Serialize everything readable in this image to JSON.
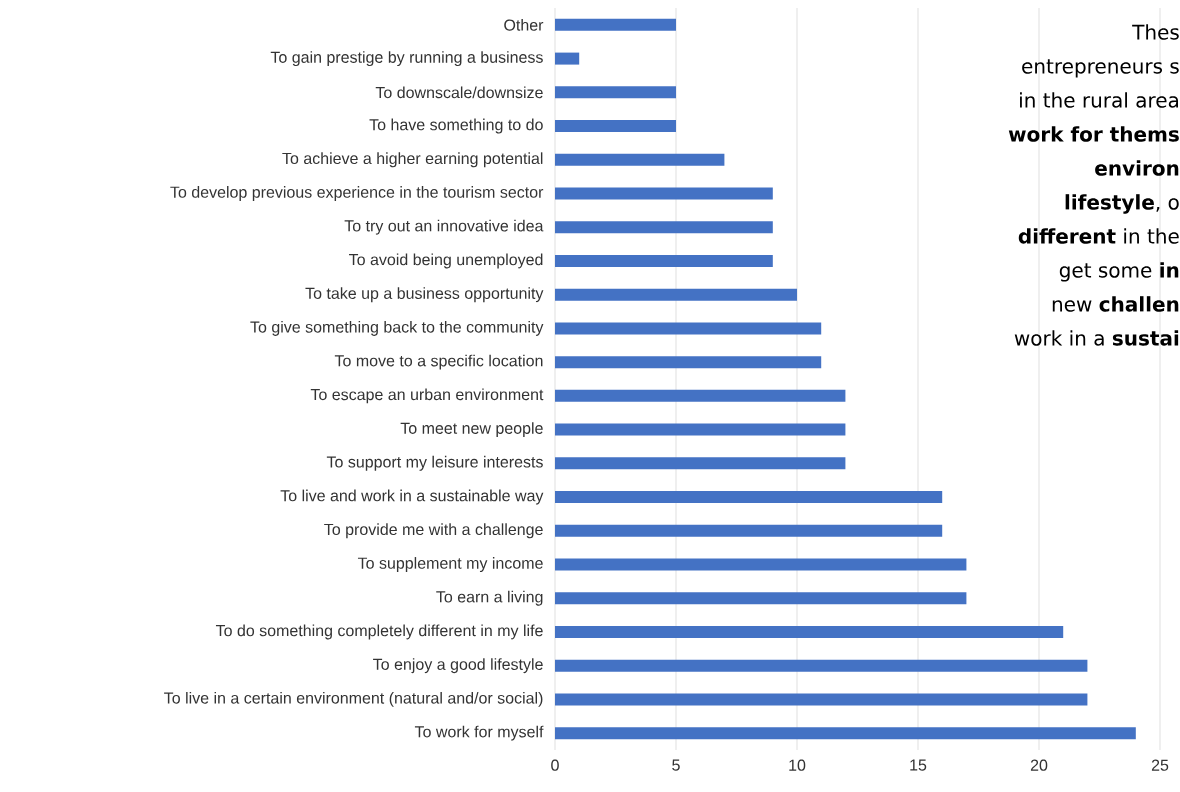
{
  "chart_data": {
    "type": "bar",
    "orientation": "horizontal",
    "categories": [
      "Other",
      "To gain prestige by running a business",
      "To downscale/downsize",
      "To have something to do",
      "To achieve a higher earning potential",
      "To develop previous experience in the tourism sector",
      "To try out an innovative idea",
      "To avoid being unemployed",
      "To take up a business opportunity",
      "To give something back to the community",
      "To move to a specific location",
      "To escape an urban environment",
      "To meet new people",
      "To support my leisure interests",
      "To live and work in a sustainable way",
      "To provide me with a challenge",
      "To supplement my income",
      "To earn a living",
      "To do something completely different in my life",
      "To enjoy a good lifestyle",
      "To live in a certain environment (natural and/or social)",
      "To work for myself"
    ],
    "values": [
      5,
      1,
      5,
      5,
      7,
      9,
      9,
      9,
      10,
      11,
      11,
      12,
      12,
      12,
      16,
      16,
      17,
      17,
      21,
      22,
      22,
      24
    ],
    "color": "#4472c4",
    "xlim": [
      0,
      25
    ],
    "xticks": [
      0,
      5,
      10,
      15,
      20,
      25
    ],
    "grid": "x",
    "annotations": [
      "Thes",
      "entrepreneurs s",
      "in the rural area",
      "**work for thems**",
      "**environ**",
      "**lifestyle**, o",
      "**different** in the",
      "get some **in**",
      "new **challen**",
      "work in a **sustai**"
    ]
  }
}
